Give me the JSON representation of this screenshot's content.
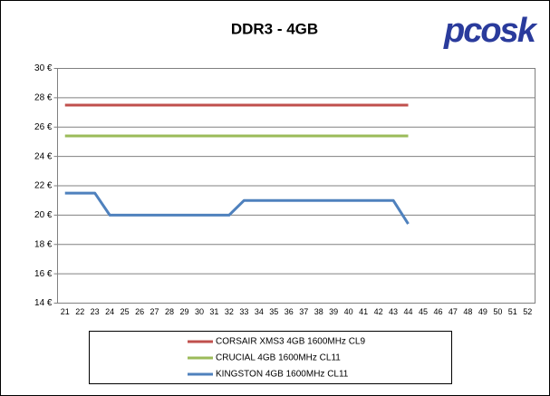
{
  "logo": "pcosk",
  "chart_data": {
    "type": "line",
    "title": "DDR3 - 4GB",
    "categories": [
      "21",
      "22",
      "23",
      "24",
      "25",
      "26",
      "27",
      "28",
      "29",
      "30",
      "31",
      "32",
      "33",
      "34",
      "35",
      "36",
      "37",
      "38",
      "39",
      "40",
      "41",
      "42",
      "43",
      "44",
      "45",
      "46",
      "47",
      "48",
      "49",
      "50",
      "51",
      "52"
    ],
    "series": [
      {
        "name": "CORSAIR XMS3 4GB 1600MHz CL9",
        "color": "#c0504d",
        "values": [
          27.5,
          27.5,
          27.5,
          27.5,
          27.5,
          27.5,
          27.5,
          27.5,
          27.5,
          27.5,
          27.5,
          27.5,
          27.5,
          27.5,
          27.5,
          27.5,
          27.5,
          27.5,
          27.5,
          27.5,
          27.5,
          27.5,
          27.5,
          27.5,
          null,
          null,
          null,
          null,
          null,
          null,
          null,
          null
        ]
      },
      {
        "name": "CRUCIAL 4GB 1600MHz CL11",
        "color": "#9bbb59",
        "values": [
          25.4,
          25.4,
          25.4,
          25.4,
          25.4,
          25.4,
          25.4,
          25.4,
          25.4,
          25.4,
          25.4,
          25.4,
          25.4,
          25.4,
          25.4,
          25.4,
          25.4,
          25.4,
          25.4,
          25.4,
          25.4,
          25.4,
          25.4,
          25.4,
          null,
          null,
          null,
          null,
          null,
          null,
          null,
          null
        ]
      },
      {
        "name": "KINGSTON 4GB 1600MHz CL11",
        "color": "#4f81bd",
        "values": [
          21.5,
          21.5,
          21.5,
          20,
          20,
          20,
          20,
          20,
          20,
          20,
          20,
          20,
          21,
          21,
          21,
          21,
          21,
          21,
          21,
          21,
          21,
          21,
          21,
          19.4,
          null,
          null,
          null,
          null,
          null,
          null,
          null,
          null
        ]
      }
    ],
    "ylim": [
      14,
      30
    ],
    "yticks": [
      {
        "value": 14,
        "label": "14 €"
      },
      {
        "value": 16,
        "label": "16 €"
      },
      {
        "value": 18,
        "label": "18 €"
      },
      {
        "value": 20,
        "label": "20 €"
      },
      {
        "value": 22,
        "label": "22 €"
      },
      {
        "value": 24,
        "label": "24 €"
      },
      {
        "value": 26,
        "label": "26 €"
      },
      {
        "value": 28,
        "label": "28 €"
      },
      {
        "value": 30,
        "label": "30 €"
      }
    ],
    "grid": true
  }
}
